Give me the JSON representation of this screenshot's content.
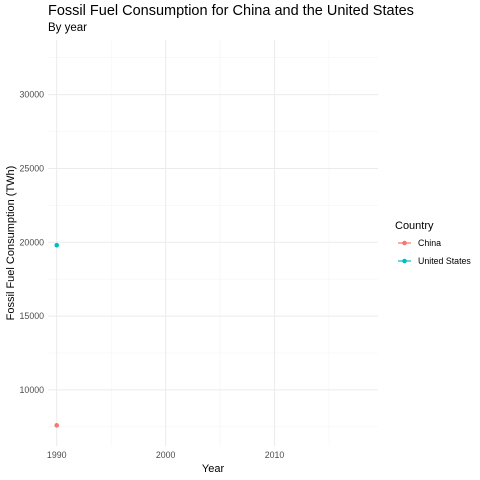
{
  "chart_data": {
    "type": "line",
    "title": "Fossil Fuel Consumption for China and the United States",
    "subtitle": "By year",
    "xlabel": "Year",
    "ylabel": "Fossil Fuel Consumption (TWh)",
    "xlim": [
      1989.2,
      2019.5
    ],
    "ylim": [
      6200,
      33700
    ],
    "x_ticks": [
      1990,
      2000,
      2010
    ],
    "y_ticks": [
      10000,
      15000,
      20000,
      25000,
      30000
    ],
    "grid": true,
    "legend": {
      "title": "Country",
      "placement": "right"
    },
    "series": [
      {
        "name": "China",
        "color": "#F8766D",
        "points": [
          {
            "x": 1990,
            "y": 7600
          }
        ]
      },
      {
        "name": "United States",
        "color": "#00BFC4",
        "points": [
          {
            "x": 1990,
            "y": 19800
          }
        ]
      }
    ]
  }
}
